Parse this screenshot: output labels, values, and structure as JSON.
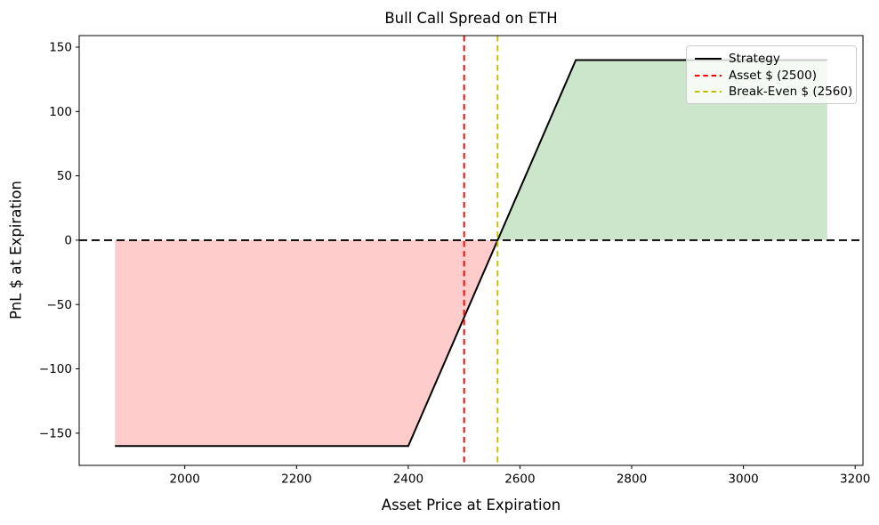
{
  "chart_data": {
    "type": "line",
    "title": "Bull Call Spread on ETH",
    "xlabel": "Asset Price at Expiration",
    "ylabel": "PnL $ at Expiration",
    "xlim": [
      1811,
      3214
    ],
    "ylim": [
      -175,
      159
    ],
    "x_ticks": [
      2000,
      2200,
      2400,
      2600,
      2800,
      3000,
      3200
    ],
    "y_ticks": [
      -150,
      -100,
      -50,
      0,
      50,
      100,
      150
    ],
    "grid": false,
    "legend_position": "upper right",
    "series": [
      {
        "name": "Strategy",
        "color": "#000000",
        "style": "solid",
        "width": 2,
        "x": [
          1875,
          2400,
          2700,
          3150
        ],
        "y": [
          -160,
          -160,
          140,
          140
        ]
      }
    ],
    "reference_lines": [
      {
        "name": "zero-pnl-line",
        "orientation": "horizontal",
        "value": 0,
        "color": "#000000",
        "style": "dashed"
      },
      {
        "name": "asset-price-line",
        "orientation": "vertical",
        "value": 2500,
        "color": "#ff0000",
        "style": "dashed"
      },
      {
        "name": "break-even-line",
        "orientation": "vertical",
        "value": 2560,
        "color": "#bfbf00",
        "style": "dashed"
      }
    ],
    "fills": [
      {
        "name": "loss-region",
        "color": "#ffcccc",
        "polygon_x": [
          1875,
          2560,
          2400,
          1875
        ],
        "polygon_y": [
          0,
          0,
          -160,
          -160
        ]
      },
      {
        "name": "profit-region",
        "color": "#cce6cc",
        "polygon_x": [
          2560,
          2700,
          3150,
          3150
        ],
        "polygon_y": [
          0,
          140,
          140,
          0
        ]
      }
    ],
    "legend": [
      {
        "label": "Strategy",
        "color": "#000000",
        "dash": "solid"
      },
      {
        "label": "Asset $ (2500)",
        "color": "#ff0000",
        "dash": "dashed"
      },
      {
        "label": "Break-Even $ (2560)",
        "color": "#bfbf00",
        "dash": "dashed"
      }
    ]
  }
}
